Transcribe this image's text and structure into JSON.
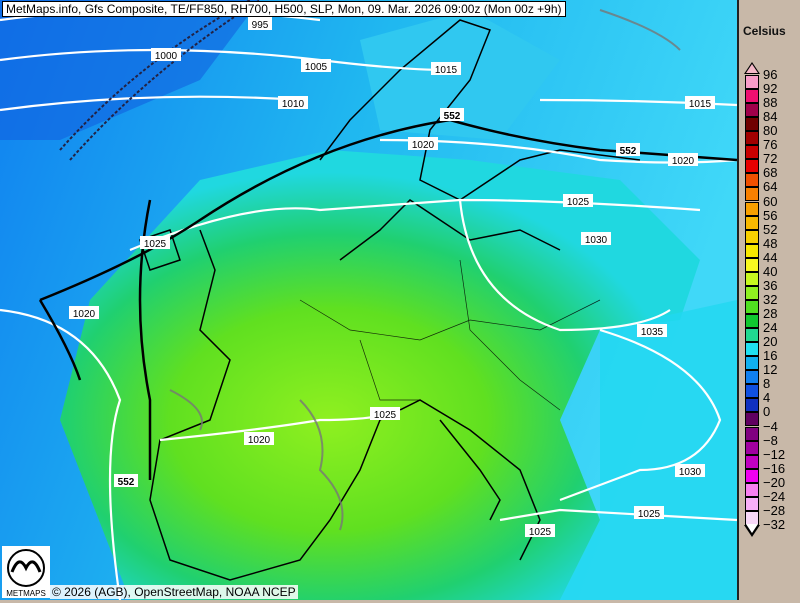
{
  "title": "MetMaps.info, Gfs Composite, TE/FF850, RH700, H500, SLP, Mon, 09. Mar. 2026 09:00z (Mon 00z +9h)",
  "legend": {
    "unit": "Celsius",
    "labels": [
      "96",
      "92",
      "88",
      "84",
      "80",
      "76",
      "72",
      "68",
      "64",
      "60",
      "56",
      "52",
      "48",
      "44",
      "40",
      "36",
      "32",
      "28",
      "24",
      "20",
      "16",
      "12",
      "8",
      "4",
      "0",
      "−4",
      "−8",
      "−12",
      "−16",
      "−20",
      "−24",
      "−28",
      "−32"
    ],
    "colors": [
      "#f79cc8",
      "#ee1070",
      "#a0004a",
      "#700000",
      "#a00000",
      "#c80000",
      "#e80000",
      "#f05000",
      "#f88000",
      "#f8a000",
      "#f8b800",
      "#f8d000",
      "#f8e800",
      "#f8f820",
      "#c8f820",
      "#90f020",
      "#50e020",
      "#10c830",
      "#20d890",
      "#20e0f0",
      "#10b0f0",
      "#1080f0",
      "#1050e0",
      "#1030c0",
      "#600060",
      "#800080",
      "#a000a0",
      "#c000c0",
      "#f000f0",
      "#f880f0",
      "#f8b0f8",
      "#f8d8f8"
    ],
    "top_arrow_color": "#f4b8c8",
    "bottom_arrow_color": "#ffffff"
  },
  "isobars": [
    "995",
    "1000",
    "1005",
    "1010",
    "1015",
    "1015",
    "1020",
    "1020",
    "1025",
    "1030",
    "1035",
    "1020",
    "1025",
    "1020",
    "1030",
    "1025",
    "1025",
    "1025"
  ],
  "h500": [
    "552",
    "552",
    "552"
  ],
  "credit": "© 2026 (AGB), OpenStreetMap, NOAA NCEP",
  "logo_text": "METMAPS"
}
